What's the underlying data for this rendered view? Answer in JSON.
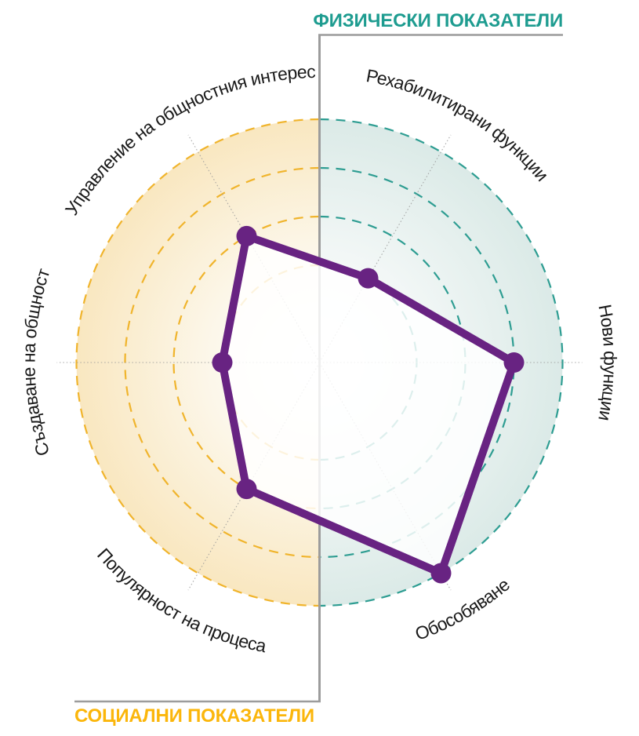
{
  "titles": {
    "physical": "ФИЗИЧЕСКИ ПОКАЗАТЕЛИ",
    "social": "СОЦИАЛНИ ПОКАЗАТЕЛИ"
  },
  "colors": {
    "physical_accent": "#1E9C90",
    "physical_ring": "#2E9D92",
    "physical_fill_center": "#FFFFFF",
    "physical_fill_mid": "#F2F7F6",
    "physical_fill_edge": "#DBEAE7",
    "social_accent": "#FBB60B",
    "social_ring": "#F0B42C",
    "social_fill_center": "#FFFFFF",
    "social_fill_mid": "#FCF7EA",
    "social_fill_edge": "#F9E7C0",
    "series_purple": "#682382",
    "divider_gray": "#9C9C9C",
    "axis_dotted": "#999999",
    "label_text": "#1A1A1A",
    "polygon_fill": "rgba(255,255,255,0.84)"
  },
  "chart_data": {
    "type": "radar",
    "title": "",
    "groups": [
      {
        "name": "ФИЗИЧЕСКИ ПОКАЗАТЕЛИ",
        "side": "right-half",
        "color": "#1E9C90"
      },
      {
        "name": "СОЦИАЛНИ ПОКАЗАТЕЛИ",
        "side": "left-half",
        "color": "#FBB60B"
      }
    ],
    "axes": [
      {
        "label": "Нови функции",
        "angle_deg": 0,
        "group": "physical",
        "value": 4
      },
      {
        "label": "Рехабилитирани функции",
        "angle_deg": 60,
        "group": "physical",
        "value": 2
      },
      {
        "label": "Управление на общностния интерес",
        "angle_deg": 120,
        "group": "social",
        "value": 3
      },
      {
        "label": "Създаване на общност",
        "angle_deg": 180,
        "group": "social",
        "value": 2
      },
      {
        "label": "Популярност на процеса",
        "angle_deg": 240,
        "group": "social",
        "value": 3
      },
      {
        "label": "Обособяване",
        "angle_deg": 300,
        "group": "physical",
        "value": 5
      }
    ],
    "series": [
      {
        "values": [
          4,
          2,
          3,
          2,
          3,
          5
        ]
      }
    ],
    "scale": {
      "min": 0,
      "max": 5,
      "rings": [
        2,
        3,
        4,
        5
      ]
    },
    "legend": "none",
    "grid": "dashed concentric half-circles (teal right, yellow left), dotted radial axes"
  }
}
